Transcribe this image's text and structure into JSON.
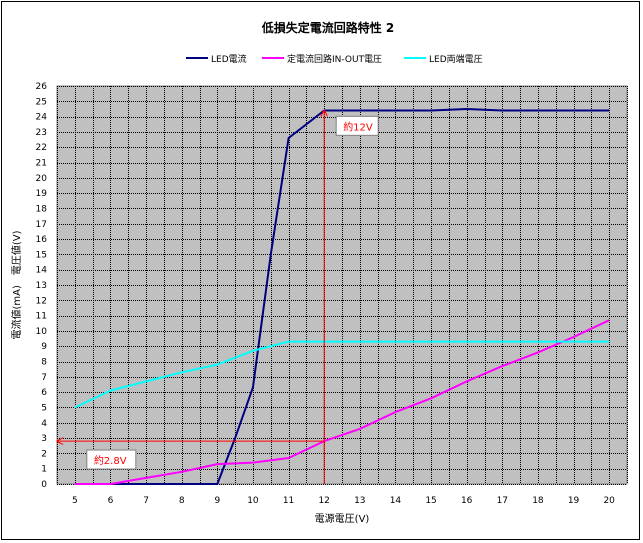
{
  "chart_data": {
    "type": "line",
    "title": "低損失定電流回路特性 2",
    "xlabel": "電源電圧(V)",
    "ylabel": "電流値(mA)　電圧値(V)",
    "xlim": [
      4.5,
      20.5
    ],
    "ylim": [
      0,
      26
    ],
    "x_ticks": [
      5,
      6,
      7,
      8,
      9,
      10,
      11,
      12,
      13,
      14,
      15,
      16,
      17,
      18,
      19,
      20
    ],
    "y_ticks": [
      0,
      1,
      2,
      3,
      4,
      5,
      6,
      7,
      8,
      9,
      10,
      11,
      12,
      13,
      14,
      15,
      16,
      17,
      18,
      19,
      20,
      21,
      22,
      23,
      24,
      25,
      26
    ],
    "grid": true,
    "legend_position": "top",
    "plot_background": "#c0c0c0",
    "series": [
      {
        "name": "LED電流",
        "color": "#000080",
        "points": [
          [
            5,
            0
          ],
          [
            6,
            0
          ],
          [
            7,
            0
          ],
          [
            8,
            0
          ],
          [
            9,
            0
          ],
          [
            9.5,
            3
          ],
          [
            10,
            6.3
          ],
          [
            10.5,
            15
          ],
          [
            11,
            22.6
          ],
          [
            12,
            24.4
          ],
          [
            13,
            24.4
          ],
          [
            14,
            24.4
          ],
          [
            15,
            24.4
          ],
          [
            16,
            24.5
          ],
          [
            17,
            24.4
          ],
          [
            18,
            24.4
          ],
          [
            19,
            24.4
          ],
          [
            20,
            24.4
          ]
        ]
      },
      {
        "name": "定電流回路IN-OUT電圧",
        "color": "#ff00ff",
        "points": [
          [
            5,
            0
          ],
          [
            6,
            0
          ],
          [
            7,
            0.4
          ],
          [
            8,
            0.8
          ],
          [
            9,
            1.3
          ],
          [
            10,
            1.4
          ],
          [
            11,
            1.7
          ],
          [
            12,
            2.8
          ],
          [
            13,
            3.6
          ],
          [
            14,
            4.7
          ],
          [
            15,
            5.6
          ],
          [
            16,
            6.7
          ],
          [
            17,
            7.7
          ],
          [
            18,
            8.6
          ],
          [
            19,
            9.6
          ],
          [
            20,
            10.7
          ]
        ]
      },
      {
        "name": "LED両端電圧",
        "color": "#00ffff",
        "points": [
          [
            5,
            5
          ],
          [
            6,
            6.1
          ],
          [
            7,
            6.7
          ],
          [
            8,
            7.3
          ],
          [
            9,
            7.8
          ],
          [
            10,
            8.7
          ],
          [
            11,
            9.3
          ],
          [
            12,
            9.3
          ],
          [
            13,
            9.3
          ],
          [
            14,
            9.3
          ],
          [
            15,
            9.3
          ],
          [
            16,
            9.3
          ],
          [
            17,
            9.3
          ],
          [
            18,
            9.3
          ],
          [
            19,
            9.3
          ],
          [
            20,
            9.3
          ]
        ]
      }
    ],
    "annotations": [
      {
        "text": "約12V",
        "x": 12,
        "y": 23.3,
        "color": "#ff0000",
        "line": {
          "from": [
            12,
            0
          ],
          "to": [
            12,
            24.4
          ]
        }
      },
      {
        "text": "約2.8V",
        "x": 5,
        "y": 1.5,
        "color": "#ff0000",
        "line": {
          "from": [
            12,
            2.8
          ],
          "to": [
            4.5,
            2.8
          ]
        }
      }
    ]
  }
}
